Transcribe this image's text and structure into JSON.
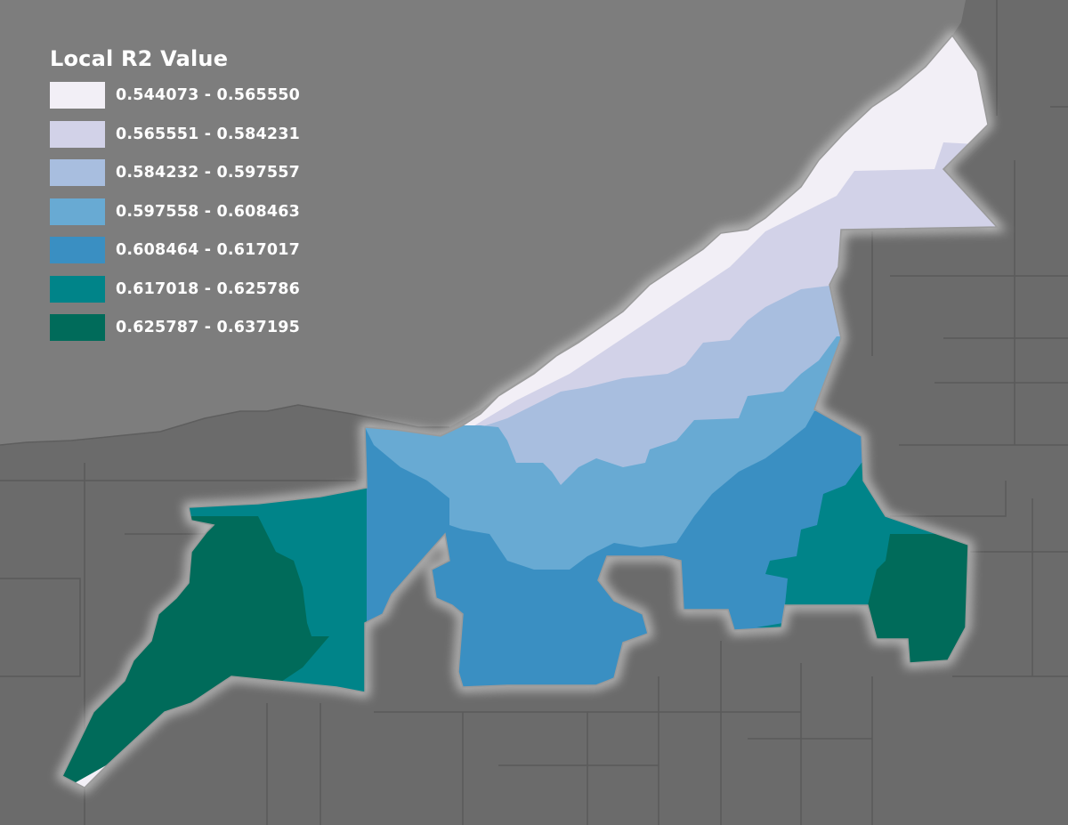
{
  "legend": {
    "title": "Local R2 Value",
    "classes": [
      {
        "label": "0.544073 - 0.565550",
        "color": "#f2eff6"
      },
      {
        "label": "0.565551 - 0.584231",
        "color": "#d2d2e8"
      },
      {
        "label": "0.584232 - 0.597557",
        "color": "#a8bedf"
      },
      {
        "label": "0.597558 - 0.608463",
        "color": "#68aad3"
      },
      {
        "label": "0.608464 - 0.617017",
        "color": "#3a8fc2"
      },
      {
        "label": "0.617018 - 0.625786",
        "color": "#008489"
      },
      {
        "label": "0.625787 - 0.637195",
        "color": "#006b5a"
      }
    ]
  },
  "colors": {
    "lake": "#7d7d7d",
    "land": "#6b6b6b",
    "boundary": "#5a5a5a",
    "city_glow": "#bdbdbd"
  }
}
